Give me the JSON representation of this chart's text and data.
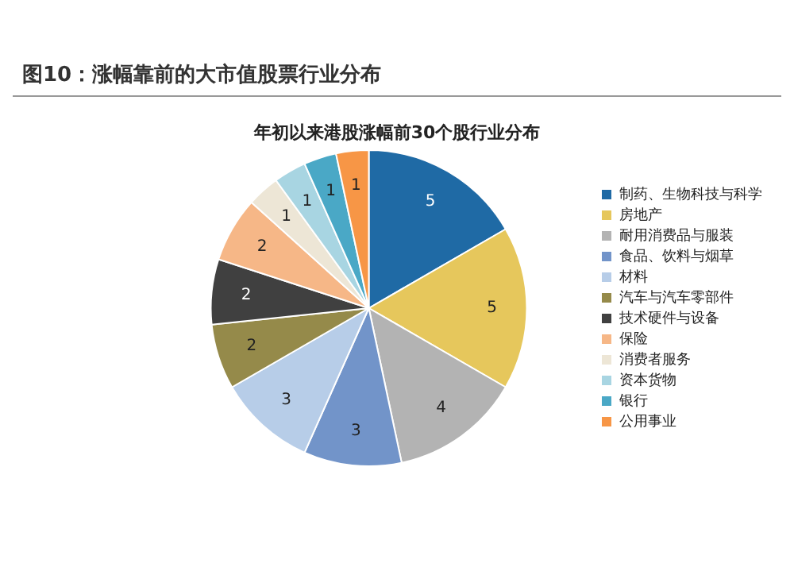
{
  "chart_data": {
    "type": "pie",
    "title": "图10：涨幅靠前的大市值股票行业分布",
    "subtitle": "年初以来港股涨幅前30个股行业分布",
    "categories": [
      "制药、生物科技与科学",
      "房地产",
      "耐用消费品与服装",
      "食品、饮料与烟草",
      "材料",
      "汽车与汽车零部件",
      "技术硬件与设备",
      "保险",
      "消费者服务",
      "资本货物",
      "银行",
      "公用事业"
    ],
    "values": [
      5,
      5,
      4,
      3,
      3,
      2,
      2,
      2,
      1,
      1,
      1,
      1
    ],
    "colors": [
      "#1f6aa5",
      "#e6c75c",
      "#b3b3b3",
      "#7294c9",
      "#b7cde8",
      "#958a4a",
      "#404040",
      "#f6b787",
      "#ede6d6",
      "#a8d5e2",
      "#4aa8c6",
      "#f79646"
    ],
    "data_labels": true,
    "legend": "right"
  }
}
